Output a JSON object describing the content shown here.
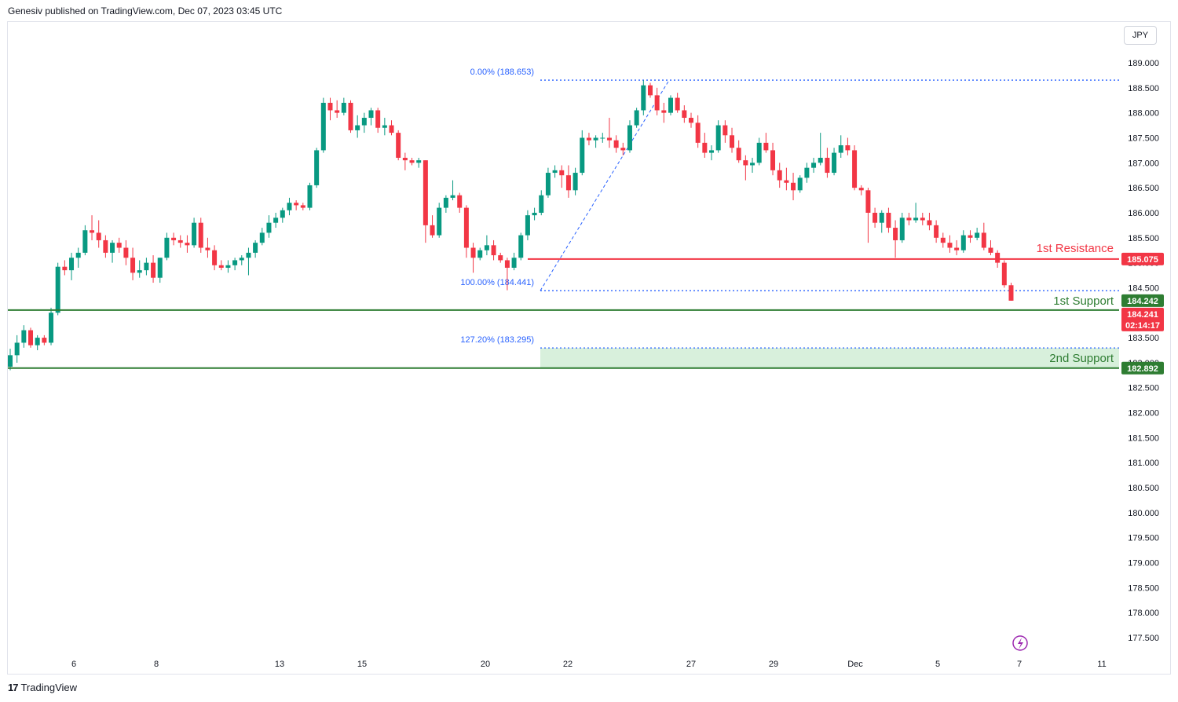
{
  "header": {
    "publisher": "Genesiv published on TradingView.com, Dec 07, 2023 03:45 UTC"
  },
  "currency": "JPY",
  "footer": {
    "brand": "TradingView",
    "logo": "tradingview-logo-icon"
  },
  "colors": {
    "bull": "#089981",
    "bear": "#f23645",
    "resistance": "#f23645",
    "support": "#2e7d32",
    "fib": "#2962ff",
    "fib_text": "#2962ff",
    "zone": "#d8f0dc"
  },
  "chart_data": {
    "type": "candlestick",
    "symbol_currency": "JPY",
    "ylim": [
      177.3,
      189.35
    ],
    "y_ticks": [
      "189.000",
      "188.500",
      "188.000",
      "187.500",
      "187.000",
      "186.500",
      "186.000",
      "185.500",
      "185.000",
      "184.500",
      "184.000",
      "183.500",
      "183.000",
      "182.500",
      "182.000",
      "181.500",
      "181.000",
      "180.500",
      "180.000",
      "179.500",
      "179.000",
      "178.500",
      "178.000",
      "177.500"
    ],
    "x_ticks": [
      "6",
      "8",
      "13",
      "15",
      "20",
      "22",
      "27",
      "29",
      "Dec",
      "5",
      "7",
      "11"
    ],
    "levels": [
      {
        "name": "1st Resistance",
        "price": 185.075,
        "label": "185.075"
      },
      {
        "name": "1st Support",
        "price": 184.242,
        "label": "184.242"
      },
      {
        "name": "2nd Support",
        "price": 182.892,
        "label": "182.892"
      }
    ],
    "last_price": {
      "label": "184.241",
      "countdown": "02:14:17"
    },
    "fibonacci": [
      {
        "label": "0.00% (188.653)",
        "price": 188.653
      },
      {
        "label": "100.00% (184.441)",
        "price": 184.441
      },
      {
        "label": "127.20% (183.295)",
        "price": 183.295
      }
    ],
    "candles": [
      [
        182.92,
        183.28,
        182.85,
        183.15
      ],
      [
        183.15,
        183.55,
        183.0,
        183.4
      ],
      [
        183.4,
        183.75,
        183.3,
        183.65
      ],
      [
        183.65,
        183.7,
        183.3,
        183.35
      ],
      [
        183.35,
        183.55,
        183.25,
        183.5
      ],
      [
        183.5,
        183.55,
        183.35,
        183.4
      ],
      [
        183.4,
        184.1,
        183.35,
        184.0
      ],
      [
        184.0,
        185.0,
        183.95,
        184.92
      ],
      [
        184.92,
        185.05,
        184.75,
        184.85
      ],
      [
        184.85,
        185.2,
        184.65,
        185.1
      ],
      [
        185.1,
        185.3,
        184.9,
        185.2
      ],
      [
        185.2,
        185.75,
        185.15,
        185.65
      ],
      [
        185.65,
        185.95,
        185.45,
        185.6
      ],
      [
        185.6,
        185.85,
        185.3,
        185.45
      ],
      [
        185.45,
        185.55,
        185.1,
        185.2
      ],
      [
        185.2,
        185.45,
        185.0,
        185.4
      ],
      [
        185.4,
        185.5,
        185.2,
        185.3
      ],
      [
        185.3,
        185.45,
        184.95,
        185.1
      ],
      [
        185.1,
        185.3,
        184.65,
        184.8
      ],
      [
        184.8,
        185.05,
        184.7,
        184.85
      ],
      [
        184.85,
        185.1,
        184.75,
        185.0
      ],
      [
        185.0,
        185.15,
        184.6,
        184.7
      ],
      [
        184.7,
        185.1,
        184.6,
        185.1
      ],
      [
        185.1,
        185.6,
        185.05,
        185.5
      ],
      [
        185.5,
        185.6,
        185.35,
        185.45
      ],
      [
        185.45,
        185.55,
        185.3,
        185.4
      ],
      [
        185.4,
        185.55,
        185.2,
        185.35
      ],
      [
        185.35,
        185.9,
        185.3,
        185.8
      ],
      [
        185.8,
        185.9,
        185.2,
        185.3
      ],
      [
        185.3,
        185.5,
        185.1,
        185.25
      ],
      [
        185.25,
        185.35,
        184.85,
        184.95
      ],
      [
        184.95,
        185.05,
        184.85,
        184.9
      ],
      [
        184.9,
        185.05,
        184.8,
        184.95
      ],
      [
        184.95,
        185.1,
        184.85,
        185.05
      ],
      [
        185.05,
        185.15,
        184.95,
        185.1
      ],
      [
        185.1,
        185.3,
        184.75,
        185.2
      ],
      [
        185.2,
        185.45,
        185.1,
        185.4
      ],
      [
        185.4,
        185.7,
        185.35,
        185.6
      ],
      [
        185.6,
        185.95,
        185.5,
        185.8
      ],
      [
        185.8,
        186.0,
        185.7,
        185.9
      ],
      [
        185.9,
        186.1,
        185.8,
        186.05
      ],
      [
        186.05,
        186.3,
        185.95,
        186.2
      ],
      [
        186.2,
        186.25,
        186.05,
        186.15
      ],
      [
        186.15,
        186.2,
        186.05,
        186.1
      ],
      [
        186.1,
        186.6,
        186.05,
        186.55
      ],
      [
        186.55,
        187.3,
        186.5,
        187.25
      ],
      [
        187.25,
        188.3,
        187.2,
        188.2
      ],
      [
        188.2,
        188.3,
        187.85,
        188.05
      ],
      [
        188.05,
        188.25,
        187.9,
        188.0
      ],
      [
        188.0,
        188.3,
        187.95,
        188.2
      ],
      [
        188.2,
        188.25,
        187.6,
        187.65
      ],
      [
        187.65,
        187.95,
        187.5,
        187.75
      ],
      [
        187.75,
        188.0,
        187.6,
        187.9
      ],
      [
        187.9,
        188.1,
        187.75,
        188.05
      ],
      [
        188.05,
        188.1,
        187.6,
        187.7
      ],
      [
        187.7,
        187.9,
        187.55,
        187.75
      ],
      [
        187.75,
        187.85,
        187.55,
        187.6
      ],
      [
        187.6,
        187.65,
        187.05,
        187.1
      ],
      [
        187.1,
        187.2,
        186.85,
        187.05
      ],
      [
        187.05,
        187.1,
        186.95,
        187.0
      ],
      [
        187.0,
        187.1,
        186.9,
        187.05
      ],
      [
        187.05,
        187.05,
        185.4,
        185.75
      ],
      [
        185.75,
        185.95,
        185.5,
        185.55
      ],
      [
        185.55,
        186.2,
        185.5,
        186.1
      ],
      [
        186.1,
        186.35,
        186.0,
        186.3
      ],
      [
        186.3,
        186.65,
        186.25,
        186.35
      ],
      [
        186.35,
        186.4,
        186.0,
        186.1
      ],
      [
        186.1,
        186.15,
        185.1,
        185.3
      ],
      [
        185.3,
        185.4,
        184.8,
        185.1
      ],
      [
        185.1,
        185.3,
        185.05,
        185.25
      ],
      [
        185.25,
        185.55,
        185.15,
        185.35
      ],
      [
        185.35,
        185.45,
        185.05,
        185.15
      ],
      [
        185.15,
        185.2,
        185.0,
        185.05
      ],
      [
        185.05,
        185.1,
        184.45,
        184.9
      ],
      [
        184.9,
        185.2,
        184.85,
        185.1
      ],
      [
        185.1,
        185.6,
        185.05,
        185.55
      ],
      [
        185.55,
        186.05,
        185.45,
        185.95
      ],
      [
        185.95,
        186.1,
        185.85,
        186.0
      ],
      [
        186.0,
        186.45,
        185.95,
        186.35
      ],
      [
        186.35,
        186.9,
        186.3,
        186.8
      ],
      [
        186.8,
        186.95,
        186.7,
        186.85
      ],
      [
        186.85,
        186.95,
        186.5,
        186.75
      ],
      [
        186.75,
        186.95,
        186.3,
        186.45
      ],
      [
        186.45,
        186.9,
        186.35,
        186.8
      ],
      [
        186.8,
        187.65,
        186.75,
        187.5
      ],
      [
        187.5,
        187.6,
        187.35,
        187.45
      ],
      [
        187.45,
        187.55,
        187.3,
        187.5
      ],
      [
        187.5,
        187.6,
        187.4,
        187.5
      ],
      [
        187.5,
        187.9,
        187.3,
        187.45
      ],
      [
        187.45,
        187.55,
        187.2,
        187.3
      ],
      [
        187.3,
        187.4,
        187.15,
        187.25
      ],
      [
        187.25,
        187.85,
        187.2,
        187.75
      ],
      [
        187.75,
        188.1,
        187.7,
        188.05
      ],
      [
        188.05,
        188.65,
        187.95,
        188.55
      ],
      [
        188.55,
        188.6,
        188.3,
        188.35
      ],
      [
        188.35,
        188.5,
        187.95,
        188.05
      ],
      [
        188.05,
        188.2,
        187.8,
        188.0
      ],
      [
        188.0,
        188.35,
        187.95,
        188.3
      ],
      [
        188.3,
        188.4,
        188.0,
        188.05
      ],
      [
        188.05,
        188.15,
        187.8,
        187.9
      ],
      [
        187.9,
        188.0,
        187.7,
        187.8
      ],
      [
        187.8,
        187.95,
        187.3,
        187.4
      ],
      [
        187.4,
        187.6,
        187.1,
        187.2
      ],
      [
        187.2,
        187.35,
        187.05,
        187.25
      ],
      [
        187.25,
        187.85,
        187.2,
        187.75
      ],
      [
        187.75,
        187.85,
        187.4,
        187.55
      ],
      [
        187.55,
        187.7,
        187.2,
        187.3
      ],
      [
        187.3,
        187.45,
        187.0,
        187.05
      ],
      [
        187.05,
        187.15,
        186.65,
        186.95
      ],
      [
        186.95,
        187.1,
        186.8,
        187.0
      ],
      [
        187.0,
        187.5,
        186.95,
        187.4
      ],
      [
        187.4,
        187.6,
        187.2,
        187.25
      ],
      [
        187.25,
        187.4,
        186.75,
        186.85
      ],
      [
        186.85,
        187.0,
        186.5,
        186.65
      ],
      [
        186.65,
        186.9,
        186.45,
        186.6
      ],
      [
        186.6,
        186.8,
        186.25,
        186.45
      ],
      [
        186.45,
        186.75,
        186.4,
        186.7
      ],
      [
        186.7,
        187.0,
        186.6,
        186.9
      ],
      [
        186.9,
        187.1,
        186.8,
        187.0
      ],
      [
        187.0,
        187.6,
        186.95,
        187.1
      ],
      [
        187.1,
        187.3,
        186.7,
        186.8
      ],
      [
        186.8,
        187.3,
        186.75,
        187.2
      ],
      [
        187.2,
        187.55,
        187.1,
        187.35
      ],
      [
        187.35,
        187.5,
        187.15,
        187.25
      ],
      [
        187.25,
        187.35,
        186.45,
        186.5
      ],
      [
        186.5,
        186.55,
        186.35,
        186.45
      ],
      [
        186.45,
        186.5,
        185.4,
        186.0
      ],
      [
        186.0,
        186.1,
        185.7,
        185.8
      ],
      [
        185.8,
        186.05,
        185.6,
        186.0
      ],
      [
        186.0,
        186.1,
        185.6,
        185.7
      ],
      [
        185.7,
        185.85,
        185.1,
        185.45
      ],
      [
        185.45,
        186.0,
        185.4,
        185.9
      ],
      [
        185.9,
        186.0,
        185.75,
        185.85
      ],
      [
        185.85,
        186.2,
        185.8,
        185.9
      ],
      [
        185.9,
        186.0,
        185.75,
        185.85
      ],
      [
        185.85,
        186.0,
        185.65,
        185.75
      ],
      [
        185.75,
        185.85,
        185.4,
        185.5
      ],
      [
        185.5,
        185.6,
        185.3,
        185.4
      ],
      [
        185.4,
        185.55,
        185.2,
        185.3
      ],
      [
        185.3,
        185.45,
        185.15,
        185.25
      ],
      [
        185.25,
        185.65,
        185.2,
        185.55
      ],
      [
        185.55,
        185.65,
        185.4,
        185.5
      ],
      [
        185.5,
        185.7,
        185.45,
        185.6
      ],
      [
        185.6,
        185.8,
        185.25,
        185.3
      ],
      [
        185.3,
        185.45,
        185.15,
        185.2
      ],
      [
        185.2,
        185.25,
        184.9,
        185.0
      ],
      [
        185.0,
        185.05,
        184.5,
        184.55
      ],
      [
        184.55,
        184.6,
        184.24,
        184.241
      ]
    ]
  }
}
